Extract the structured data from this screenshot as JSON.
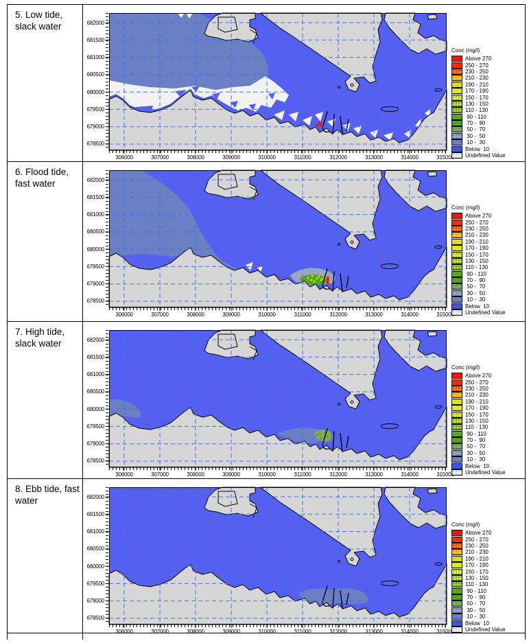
{
  "panels": [
    {
      "id": "p5",
      "label": "5. Low tide, slack water"
    },
    {
      "id": "p6",
      "label": "6. Flood tide, fast water"
    },
    {
      "id": "p7",
      "label": "7. High tide, slack water"
    },
    {
      "id": "p8",
      "label": "8. Ebb tide, fast water"
    }
  ],
  "axes": {
    "x": [
      "306000",
      "307000",
      "308000",
      "309000",
      "310000",
      "311000",
      "312000",
      "313000",
      "314000",
      "315000"
    ],
    "y": [
      "682000",
      "681500",
      "681000",
      "680500",
      "680000",
      "679500",
      "679000",
      "678500"
    ]
  },
  "legend": {
    "title": "Conc (mg/l)",
    "entries": [
      {
        "label": "Above 270",
        "color": "#F81400"
      },
      {
        "label": "250 - 270",
        "color": "#F82E00"
      },
      {
        "label": "230 - 250",
        "color": "#FF8C00",
        "dot": "#E81800"
      },
      {
        "label": "210 - 230",
        "color": "#FFC81E",
        "dot": "#FF8C00"
      },
      {
        "label": "190 - 210",
        "color": "#D7DF22"
      },
      {
        "label": "170 - 190",
        "color": "#DFE714"
      },
      {
        "label": "150 - 170",
        "color": "#E4EA46",
        "dot": "#7FB428"
      },
      {
        "label": "130 - 150",
        "color": "#CFDE3E",
        "dot": "#569F1E"
      },
      {
        "label": "110 - 130",
        "color": "#A4C83C",
        "dot": "#569F1E"
      },
      {
        "label": " 90 - 110",
        "color": "#57A81F"
      },
      {
        "label": " 70 -  90",
        "color": "#50A41C"
      },
      {
        "label": " 50 -  70",
        "color": "#8BA482",
        "dot": "#569F1E"
      },
      {
        "label": " 30 -  50",
        "color": "#99A7C0",
        "dot": "#6A7FC2"
      },
      {
        "label": " 10 -  30",
        "color": "#6B80C4"
      },
      {
        "label": "Below  10",
        "color": "#3D55F0"
      },
      {
        "label": "Undefined Value",
        "color": "#F2F2F2",
        "dot": "#C8C8C8"
      }
    ]
  },
  "colors": {
    "sea": "#5560F0",
    "slate": "#6B80C4",
    "halo": "#99A7C0",
    "land": "#D6D6D6",
    "undefined": "#F2F2F2",
    "grid": "#3E72F5",
    "coast": "#000000",
    "plume_green": "#55A81E",
    "plume_green2": "#7FAF52",
    "plume_dark": "#3C7E12",
    "plume_yellow": "#DEE614",
    "plume_orange": "#FFC800",
    "red": "#F01800"
  }
}
